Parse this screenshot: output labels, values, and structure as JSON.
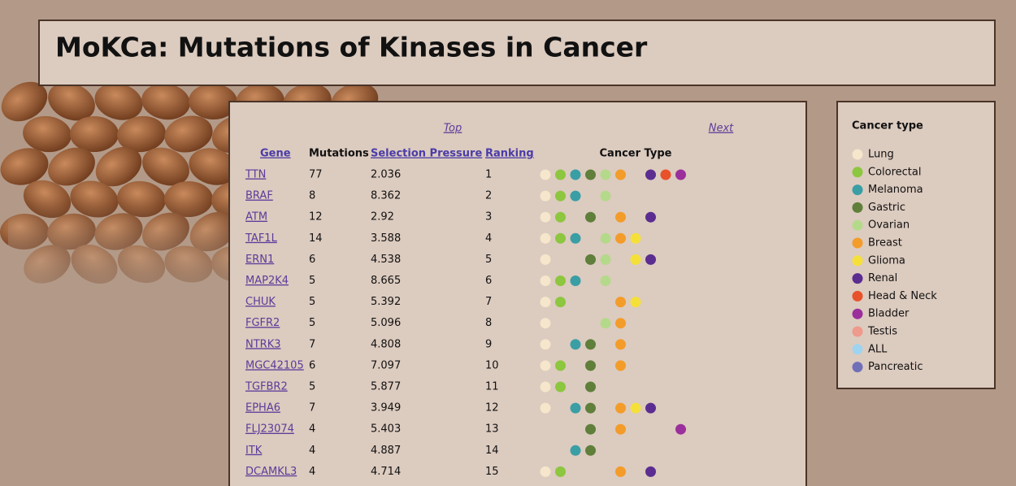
{
  "header": {
    "title": "MoKCa: Mutations of Kinases in Cancer"
  },
  "nav": {
    "top": "Top",
    "next": "Next"
  },
  "table": {
    "columns": [
      "Gene",
      "Mutations",
      "Selection Pressure",
      "Ranking",
      "Cancer Type"
    ],
    "rows": [
      {
        "gene": "TTN",
        "mutations": 77,
        "selection_pressure": 2.036,
        "ranking": 1,
        "cancer_types": [
          true,
          true,
          true,
          true,
          true,
          true,
          false,
          true,
          true,
          true
        ]
      },
      {
        "gene": "BRAF",
        "mutations": 8,
        "selection_pressure": 8.362,
        "ranking": 2,
        "cancer_types": [
          true,
          true,
          true,
          false,
          true,
          false,
          false,
          false,
          false,
          false
        ]
      },
      {
        "gene": "ATM",
        "mutations": 12,
        "selection_pressure": 2.92,
        "ranking": 3,
        "cancer_types": [
          true,
          true,
          false,
          true,
          false,
          true,
          false,
          true,
          false,
          false
        ]
      },
      {
        "gene": "TAF1L",
        "mutations": 14,
        "selection_pressure": 3.588,
        "ranking": 4,
        "cancer_types": [
          true,
          true,
          true,
          false,
          true,
          true,
          true,
          false,
          false,
          false
        ]
      },
      {
        "gene": "ERN1",
        "mutations": 6,
        "selection_pressure": 4.538,
        "ranking": 5,
        "cancer_types": [
          true,
          false,
          false,
          true,
          true,
          false,
          true,
          true,
          false,
          false
        ]
      },
      {
        "gene": "MAP2K4",
        "mutations": 5,
        "selection_pressure": 8.665,
        "ranking": 6,
        "cancer_types": [
          true,
          true,
          true,
          false,
          true,
          false,
          false,
          false,
          false,
          false
        ]
      },
      {
        "gene": "CHUK",
        "mutations": 5,
        "selection_pressure": 5.392,
        "ranking": 7,
        "cancer_types": [
          true,
          true,
          false,
          false,
          false,
          true,
          true,
          false,
          false,
          false
        ]
      },
      {
        "gene": "FGFR2",
        "mutations": 5,
        "selection_pressure": 5.096,
        "ranking": 8,
        "cancer_types": [
          true,
          false,
          false,
          false,
          true,
          true,
          false,
          false,
          false,
          false
        ]
      },
      {
        "gene": "NTRK3",
        "mutations": 7,
        "selection_pressure": 4.808,
        "ranking": 9,
        "cancer_types": [
          true,
          false,
          true,
          true,
          false,
          true,
          false,
          false,
          false,
          false
        ]
      },
      {
        "gene": "MGC42105",
        "mutations": 6,
        "selection_pressure": 7.097,
        "ranking": 10,
        "cancer_types": [
          true,
          true,
          false,
          true,
          false,
          true,
          false,
          false,
          false,
          false
        ]
      },
      {
        "gene": "TGFBR2",
        "mutations": 5,
        "selection_pressure": 5.877,
        "ranking": 11,
        "cancer_types": [
          true,
          true,
          false,
          true,
          false,
          false,
          false,
          false,
          false,
          false
        ]
      },
      {
        "gene": "EPHA6",
        "mutations": 7,
        "selection_pressure": 3.949,
        "ranking": 12,
        "cancer_types": [
          true,
          false,
          true,
          true,
          false,
          true,
          true,
          true,
          false,
          false
        ]
      },
      {
        "gene": "FLJ23074",
        "mutations": 4,
        "selection_pressure": 5.403,
        "ranking": 13,
        "cancer_types": [
          false,
          false,
          false,
          true,
          false,
          true,
          false,
          false,
          false,
          true
        ]
      },
      {
        "gene": "ITK",
        "mutations": 4,
        "selection_pressure": 4.887,
        "ranking": 14,
        "cancer_types": [
          false,
          false,
          true,
          true,
          false,
          false,
          false,
          false,
          false,
          false
        ]
      },
      {
        "gene": "DCAMKL3",
        "mutations": 4,
        "selection_pressure": 4.714,
        "ranking": 15,
        "cancer_types": [
          true,
          true,
          false,
          false,
          false,
          true,
          false,
          true,
          false,
          false
        ]
      }
    ]
  },
  "legend": {
    "title": "Cancer type",
    "items": [
      {
        "name": "Lung",
        "color": "#f5e6cc"
      },
      {
        "name": "Colorectal",
        "color": "#8dc63f"
      },
      {
        "name": "Melanoma",
        "color": "#3a9ea5"
      },
      {
        "name": "Gastric",
        "color": "#5f7f3a"
      },
      {
        "name": "Ovarian",
        "color": "#b5d98a"
      },
      {
        "name": "Breast",
        "color": "#f39c2a"
      },
      {
        "name": "Glioma",
        "color": "#f5e03a"
      },
      {
        "name": "Renal",
        "color": "#5b2d90"
      },
      {
        "name": "Head & Neck",
        "color": "#e8512a"
      },
      {
        "name": "Bladder",
        "color": "#9b2f9b"
      },
      {
        "name": "Testis",
        "color": "#ee9a8c"
      },
      {
        "name": "ALL",
        "color": "#9fd4f0"
      },
      {
        "name": "Pancreatic",
        "color": "#7070b8"
      }
    ]
  }
}
